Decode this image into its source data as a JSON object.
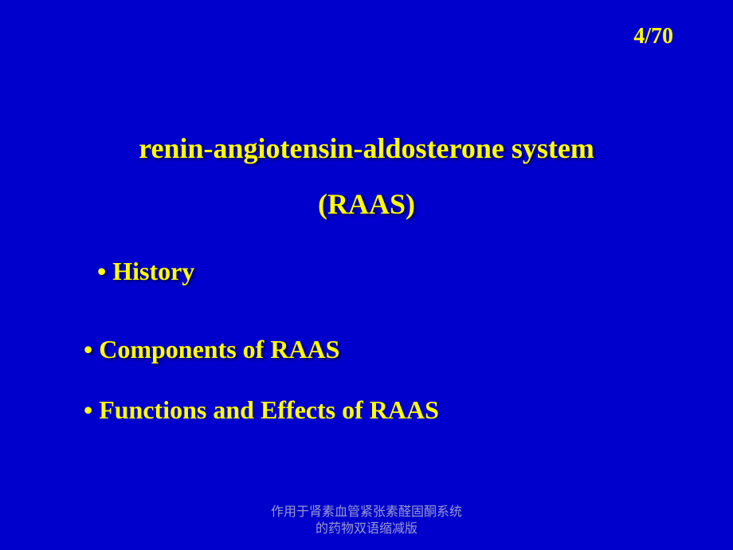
{
  "colors": {
    "background": "#0000cc",
    "text_primary": "#ffff00",
    "footer_text": "#9999cc"
  },
  "typography": {
    "title_fontsize": 36,
    "bullet_fontsize": 32,
    "counter_fontsize": 28,
    "footer_fontsize": 16,
    "font_family": "Times New Roman"
  },
  "page_counter": "4/70",
  "title": "renin-angiotensin-aldosterone system",
  "subtitle": "(RAAS)",
  "bullets": [
    "• History",
    "• Components of RAAS",
    "• Functions and Effects of RAAS"
  ],
  "footer_line1": "作用于肾素血管紧张素醛固酮系统",
  "footer_line2": "的药物双语缩减版"
}
